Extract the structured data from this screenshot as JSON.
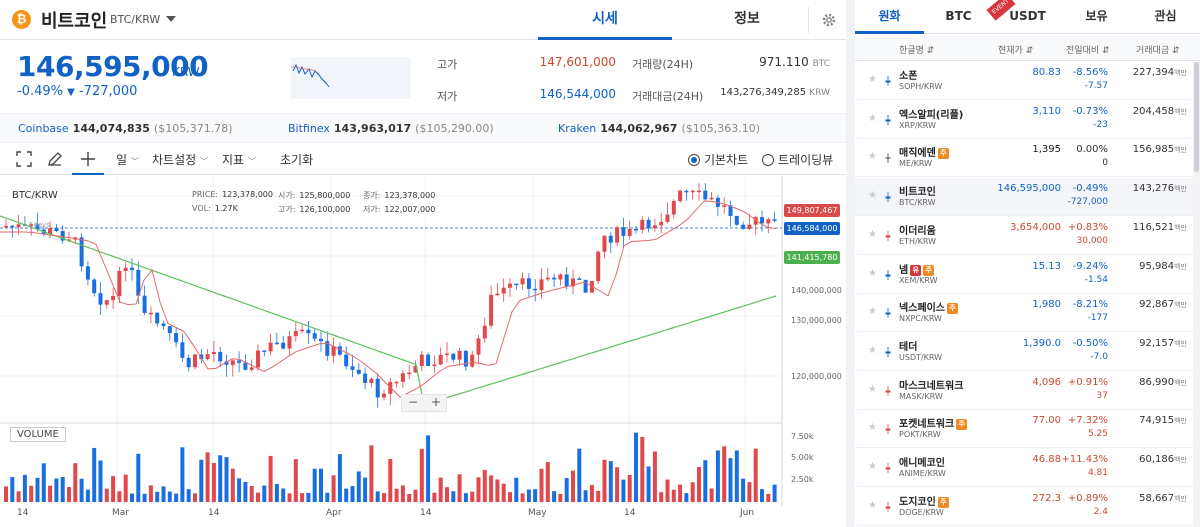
{
  "header": {
    "coin_name": "비트코인",
    "pair": "BTC/KRW",
    "tabs": [
      "시세",
      "정보"
    ],
    "active_tab": "시세",
    "icons": {
      "coin": "bitcoin-icon",
      "settings": "gear-icon",
      "dropdown": "caret-down-icon"
    }
  },
  "price_block": {
    "price": "146,595,000",
    "unit": "KRW",
    "change_pct": "-0.49%",
    "change_arrow": "▼",
    "change_amount": "-727,000",
    "stats": {
      "high_label": "고가",
      "high_value": "147,601,000",
      "low_label": "저가",
      "low_value": "146,544,000",
      "volume_label": "거래량(24H)",
      "volume_value": "971.110",
      "volume_unit": "BTC",
      "amount_label": "거래대금(24H)",
      "amount_value": "143,276,349,285",
      "amount_unit": "KRW"
    },
    "accent_up": "#c84a31",
    "accent_down": "#1261c4"
  },
  "exchanges": [
    {
      "name": "Coinbase",
      "value": "144,074,835",
      "usd": "($105,371.78)"
    },
    {
      "name": "Bitfinex",
      "value": "143,963,017",
      "usd": "($105,290.00)"
    },
    {
      "name": "Kraken",
      "value": "144,062,967",
      "usd": "($105,363.10)"
    }
  ],
  "toolbar": {
    "period": "일",
    "chart_settings": "차트설정",
    "indicators": "지표",
    "reset": "초기화",
    "mode_basic": "기본차트",
    "mode_tradingview": "트레이딩뷰",
    "selected_mode": "기본차트",
    "icons": [
      "fullscreen-icon",
      "pencil-icon",
      "crosshair-icon"
    ]
  },
  "chart": {
    "symbol": "BTC/KRW",
    "ohlc": {
      "price_label": "PRICE:",
      "price": "123,378,000",
      "open_label": "시가:",
      "open": "125,800,000",
      "close_label": "종가:",
      "close": "123,378,000",
      "vol_label": "VOL:",
      "vol": "1.27K",
      "high_label": "고가:",
      "high": "126,100,000",
      "low_label": "저가:",
      "low": "122,007,000"
    },
    "ma_label": "5days",
    "volume_label": "VOLUME",
    "zoom_minus": "−",
    "zoom_plus": "+",
    "price_axis": [
      "130,000,000",
      "120,000,000",
      "140,000,000"
    ],
    "volume_axis": [
      "7.50k",
      "5.00k",
      "2.50k"
    ],
    "x_axis": [
      "14",
      "Mar",
      "14",
      "Apr",
      "14",
      "May",
      "14",
      "Jun"
    ],
    "tags": {
      "ma_short": "149,807,467",
      "current": "146,584,000",
      "ma_long": "141,415,780"
    },
    "colors": {
      "up": "#e0484c",
      "down": "#1a6fe0",
      "ma_short": "#e26b6b",
      "ma_long": "#5dc15d"
    }
  },
  "market": {
    "tabs": [
      "원화",
      "BTC",
      "USDT",
      "보유",
      "관심"
    ],
    "active_tab": "원화",
    "event_label": "EVENT",
    "columns": [
      "한글명 ⇵",
      "현재가 ⇵",
      "전일대비 ⇵",
      "거래대금 ⇵"
    ],
    "volume_unit": "백만",
    "rows": [
      {
        "name": "소폰",
        "pair": "SOPH/KRW",
        "price": "80.83",
        "pct": "-8.56%",
        "diff": "-7.57",
        "volume": "227,394",
        "dir": "down",
        "badges": []
      },
      {
        "name": "엑스알피(리플)",
        "pair": "XRP/KRW",
        "price": "3,110",
        "pct": "-0.73%",
        "diff": "-23",
        "volume": "204,458",
        "dir": "down",
        "badges": []
      },
      {
        "name": "매직에덴",
        "pair": "ME/KRW",
        "price": "1,395",
        "pct": "0.00%",
        "diff": "0",
        "volume": "156,985",
        "dir": "flat",
        "badges": [
          "주"
        ]
      },
      {
        "name": "비트코인",
        "pair": "BTC/KRW",
        "price": "146,595,000",
        "pct": "-0.49%",
        "diff": "-727,000",
        "volume": "143,276",
        "dir": "down",
        "badges": []
      },
      {
        "name": "이더리움",
        "pair": "ETH/KRW",
        "price": "3,654,000",
        "pct": "+0.83%",
        "diff": "30,000",
        "volume": "116,521",
        "dir": "up",
        "badges": []
      },
      {
        "name": "넴",
        "pair": "XEM/KRW",
        "price": "15.13",
        "pct": "-9.24%",
        "diff": "-1.54",
        "volume": "95,984",
        "dir": "down",
        "badges": [
          "유",
          "주"
        ]
      },
      {
        "name": "넥스페이스",
        "pair": "NXPC/KRW",
        "price": "1,980",
        "pct": "-8.21%",
        "diff": "-177",
        "volume": "92,867",
        "dir": "down",
        "badges": [
          "주"
        ]
      },
      {
        "name": "테더",
        "pair": "USDT/KRW",
        "price": "1,390.0",
        "pct": "-0.50%",
        "diff": "-7.0",
        "volume": "92,157",
        "dir": "down",
        "badges": []
      },
      {
        "name": "마스크네트워크",
        "pair": "MASK/KRW",
        "price": "4,096",
        "pct": "+0.91%",
        "diff": "37",
        "volume": "86,990",
        "dir": "up",
        "badges": []
      },
      {
        "name": "포켓네트워크",
        "pair": "POKT/KRW",
        "price": "77.00",
        "pct": "+7.32%",
        "diff": "5.25",
        "volume": "74,915",
        "dir": "up",
        "badges": [
          "주"
        ]
      },
      {
        "name": "애니메코인",
        "pair": "ANIME/KRW",
        "price": "46.88",
        "pct": "+11.43%",
        "diff": "4.81",
        "volume": "60,186",
        "dir": "up",
        "badges": []
      },
      {
        "name": "도지코인",
        "pair": "DOGE/KRW",
        "price": "272.3",
        "pct": "+0.89%",
        "diff": "2.4",
        "volume": "58,667",
        "dir": "up",
        "badges": [
          "주"
        ]
      }
    ]
  }
}
